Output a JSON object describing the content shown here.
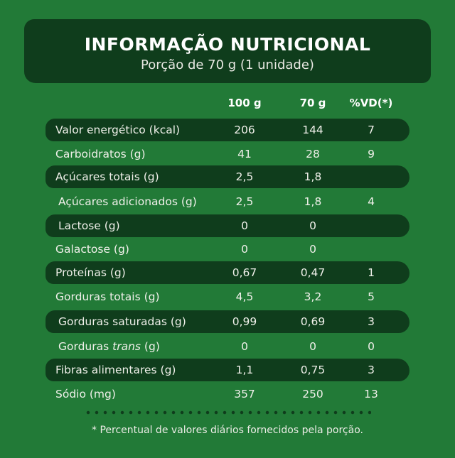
{
  "header": {
    "title": "INFORMAÇÃO NUTRICIONAL",
    "subtitle": "Porção de 70 g (1 unidade)"
  },
  "columns": [
    "100 g",
    "70 g",
    "%VD(*)"
  ],
  "rows": [
    {
      "label": "Valor energético (kcal)",
      "per100": "206",
      "per70": "144",
      "vd": "7"
    },
    {
      "label": "Carboidratos (g)",
      "per100": "41",
      "per70": "28",
      "vd": "9"
    },
    {
      "label": "Açúcares totais (g)",
      "per100": "2,5",
      "per70": "1,8",
      "vd": ""
    },
    {
      "label": "Açúcares adicionados (g)",
      "per100": "2,5",
      "per70": "1,8",
      "vd": "4"
    },
    {
      "label": "Lactose (g)",
      "per100": "0",
      "per70": "0",
      "vd": ""
    },
    {
      "label": "Galactose (g)",
      "per100": "0",
      "per70": "0",
      "vd": ""
    },
    {
      "label": "Proteínas (g)",
      "per100": "0,67",
      "per70": "0,47",
      "vd": "1"
    },
    {
      "label": "Gorduras totais (g)",
      "per100": "4,5",
      "per70": "3,2",
      "vd": "5"
    },
    {
      "label": "Gorduras saturadas (g)",
      "per100": "0,99",
      "per70": "0,69",
      "vd": "3"
    },
    {
      "label_prefix": "Gorduras ",
      "label_italic": "trans",
      "label_suffix": " (g)",
      "per100": "0",
      "per70": "0",
      "vd": "0"
    },
    {
      "label": "Fibras alimentares (g)",
      "per100": "1,1",
      "per70": "0,75",
      "vd": "3"
    },
    {
      "label": "Sódio (mg)",
      "per100": "357",
      "per70": "250",
      "vd": "13"
    }
  ],
  "footnote": "* Percentual de valores diários fornecidos pela porção.",
  "colors": {
    "background": "#227a37",
    "band": "#0f3d1c",
    "text": "#f2f2ee"
  }
}
